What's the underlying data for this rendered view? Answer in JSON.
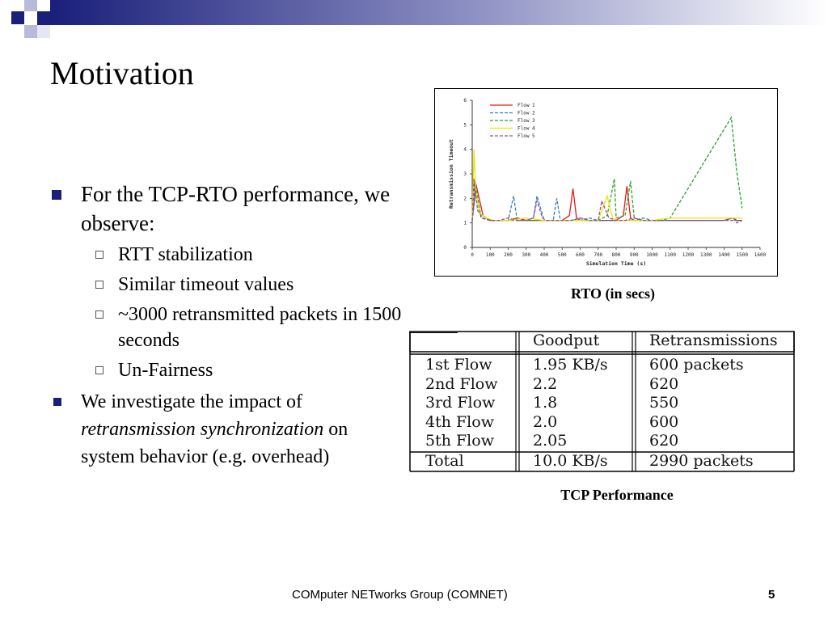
{
  "slide": {
    "title": "Motivation",
    "bullets": [
      {
        "text": "For the TCP-RTO performance, we observe:",
        "subitems": [
          "RTT stabilization",
          "Similar timeout values",
          "~3000 retransmitted packets in 1500 seconds",
          "Un-Fairness"
        ]
      }
    ],
    "bullet2": {
      "prefix": "We investigate the impact of ",
      "emphasis": "retransmission synchronization",
      "suffix": " on system behavior (e.g. overhead)"
    },
    "footer": "COMputer NETworks Group (COMNET)",
    "page_number": "5"
  },
  "figure_caption_chart": "RTO (in secs)",
  "figure_caption_table": "TCP Performance",
  "chart_data": {
    "type": "line",
    "xlabel": "Simulation Time (s)",
    "ylabel": "Retransmission Timeout",
    "xlim": [
      0,
      1600
    ],
    "ylim": [
      0,
      6
    ],
    "xticks": [
      0,
      100,
      200,
      300,
      400,
      500,
      600,
      700,
      800,
      900,
      1000,
      1100,
      1200,
      1300,
      1400,
      1500,
      1600
    ],
    "yticks": [
      0,
      1,
      2,
      3,
      4,
      5,
      6
    ],
    "legend_position": "top-left",
    "series": [
      {
        "name": "Flow 1",
        "color": "#e41a1c",
        "dash": "solid",
        "x": [
          0,
          20,
          60,
          100,
          150,
          200,
          250,
          300,
          350,
          400,
          450,
          500,
          540,
          560,
          580,
          600,
          650,
          700,
          750,
          800,
          840,
          860,
          880,
          900,
          950,
          1000,
          1050,
          1100,
          1200,
          1300,
          1400,
          1450,
          1470,
          1500
        ],
        "y": [
          1.1,
          2.6,
          1.3,
          1.1,
          1.1,
          1.1,
          1.2,
          1.1,
          1.1,
          1.1,
          1.1,
          1.1,
          1.3,
          2.4,
          1.2,
          1.1,
          1.1,
          1.1,
          1.1,
          1.1,
          1.3,
          2.5,
          1.2,
          1.1,
          1.1,
          1.1,
          1.1,
          1.1,
          1.1,
          1.1,
          1.1,
          1.2,
          1.1,
          1.1
        ]
      },
      {
        "name": "Flow 2",
        "color": "#377eb8",
        "dash": "dashed",
        "x": [
          0,
          20,
          50,
          100,
          150,
          200,
          230,
          250,
          300,
          340,
          360,
          400,
          450,
          470,
          490,
          550,
          600,
          650,
          700,
          750,
          800,
          850,
          900,
          950,
          1000,
          1050,
          1100,
          1200,
          1300,
          1400,
          1450,
          1470,
          1500
        ],
        "y": [
          1.1,
          2.3,
          1.2,
          1.1,
          1.1,
          1.1,
          2.1,
          1.1,
          1.1,
          1.2,
          2.1,
          1.1,
          1.1,
          2.0,
          1.1,
          1.1,
          1.1,
          1.2,
          1.1,
          1.1,
          1.1,
          1.1,
          1.1,
          1.2,
          1.1,
          1.1,
          1.1,
          1.1,
          1.1,
          1.1,
          1.2,
          1.0,
          1.1
        ]
      },
      {
        "name": "Flow 3",
        "color": "#2ca02c",
        "dash": "dashed",
        "x": [
          0,
          15,
          50,
          100,
          200,
          300,
          400,
          500,
          560,
          600,
          650,
          700,
          750,
          790,
          800,
          850,
          880,
          900,
          950,
          1000,
          1050,
          1100,
          1440,
          1470,
          1500
        ],
        "y": [
          1.1,
          2.7,
          1.2,
          1.1,
          1.1,
          1.1,
          1.1,
          1.1,
          1.1,
          1.2,
          1.1,
          1.1,
          1.3,
          2.8,
          1.2,
          1.3,
          2.7,
          1.2,
          1.1,
          1.1,
          1.1,
          1.2,
          5.3,
          3.1,
          1.6
        ]
      },
      {
        "name": "Flow 4",
        "color": "#e6e600",
        "dash": "solid",
        "x": [
          0,
          10,
          20,
          40,
          80,
          120,
          200,
          300,
          400,
          500,
          600,
          700,
          750,
          780,
          800,
          900,
          1000,
          1100,
          1200,
          1300,
          1400,
          1500
        ],
        "y": [
          1.2,
          4.0,
          2.3,
          1.4,
          1.2,
          1.1,
          1.1,
          1.2,
          1.1,
          1.1,
          1.1,
          1.1,
          2.1,
          1.2,
          1.1,
          1.1,
          1.1,
          1.2,
          1.2,
          1.2,
          1.2,
          1.2
        ]
      },
      {
        "name": "Flow 5",
        "color": "#984ea3",
        "dash": "dashed",
        "x": [
          0,
          10,
          30,
          60,
          100,
          150,
          200,
          250,
          300,
          340,
          360,
          390,
          410,
          450,
          500,
          550,
          600,
          650,
          700,
          720,
          760,
          800,
          850,
          900,
          950,
          1000,
          1100,
          1200,
          1300,
          1400,
          1480,
          1500
        ],
        "y": [
          1.1,
          2.8,
          1.5,
          1.2,
          1.1,
          1.1,
          1.2,
          1.1,
          1.1,
          1.2,
          1.9,
          1.2,
          1.1,
          1.1,
          1.1,
          1.1,
          1.2,
          1.1,
          1.1,
          1.9,
          1.2,
          1.1,
          1.1,
          1.2,
          1.1,
          1.1,
          1.1,
          1.1,
          1.1,
          1.1,
          1.1,
          1.1
        ]
      }
    ]
  },
  "performance_table": {
    "headers": [
      "",
      "Goodput",
      "Retransmissions"
    ],
    "rows": [
      [
        "1st Flow",
        "1.95 KB/s",
        "600 packets"
      ],
      [
        "2nd Flow",
        "2.2",
        "620"
      ],
      [
        "3rd Flow",
        "1.8",
        "550"
      ],
      [
        "4th Flow",
        "2.0",
        "600"
      ],
      [
        "5th Flow",
        "2.05",
        "620"
      ]
    ],
    "total": [
      "Total",
      "10.0 KB/s",
      "2990 packets"
    ]
  },
  "colors": {
    "bullet": "#1a1f7a",
    "banner_dark": "#1a1f7a",
    "banner_light": "#ffffff"
  }
}
